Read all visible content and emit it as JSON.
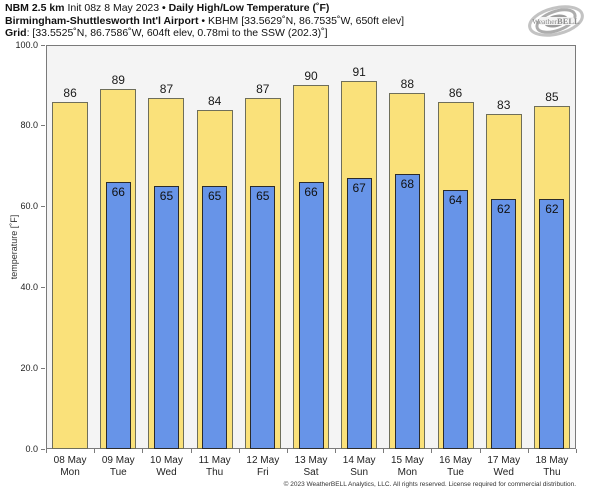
{
  "header": {
    "line1_bold": "NBM 2.5 km",
    "line1_regular": " Init 08z 8 May 2023 ",
    "line1_bold2": "• Daily High/Low Temperature (˚F)",
    "line2_bold": "Birmingham-Shuttlesworth Int'l Airport",
    "line2_regular": " • KBHM [33.5629˚N, 86.7535˚W, 650ft elev]",
    "line3_bold": "Grid",
    "line3_regular": ": [33.5525˚N, 86.7586˚W, 604ft elev, 0.78mi to the SSW (202.3)˚]"
  },
  "logo": {
    "text_weather": "Weather",
    "text_bell": "BELL"
  },
  "chart_data": {
    "type": "bar",
    "title": "NBM 2.5 km Daily High/Low Temperature (°F) — KBHM",
    "ylabel": "temperature [˚F]",
    "xlabel": "",
    "ylim": [
      0,
      100
    ],
    "grid": false,
    "legend": "none",
    "plot_background": "#f4f4f4",
    "yticks": [
      {
        "value": 0,
        "label": "0.0"
      },
      {
        "value": 20,
        "label": "20.0"
      },
      {
        "value": 40,
        "label": "40.0"
      },
      {
        "value": 60,
        "label": "60.0"
      },
      {
        "value": 80,
        "label": "80.0"
      },
      {
        "value": 100,
        "label": "100.0"
      }
    ],
    "categories": [
      {
        "date": "08 May",
        "weekday": "Mon"
      },
      {
        "date": "09 May",
        "weekday": "Tue"
      },
      {
        "date": "10 May",
        "weekday": "Wed"
      },
      {
        "date": "11 May",
        "weekday": "Thu"
      },
      {
        "date": "12 May",
        "weekday": "Fri"
      },
      {
        "date": "13 May",
        "weekday": "Sat"
      },
      {
        "date": "14 May",
        "weekday": "Sun"
      },
      {
        "date": "15 May",
        "weekday": "Mon"
      },
      {
        "date": "16 May",
        "weekday": "Tue"
      },
      {
        "date": "17 May",
        "weekday": "Wed"
      },
      {
        "date": "18 May",
        "weekday": "Thu"
      }
    ],
    "series": [
      {
        "name": "daily-high",
        "color": "#FAE17A",
        "edge_color": "#6e6e5a",
        "values": [
          86,
          89,
          87,
          84,
          87,
          90,
          91,
          88,
          86,
          83,
          85
        ]
      },
      {
        "name": "daily-low",
        "color": "#6794E8",
        "edge_color": "#2b2b2b",
        "values": [
          null,
          66,
          65,
          65,
          65,
          66,
          67,
          68,
          64,
          62,
          62
        ]
      }
    ]
  },
  "footer": {
    "copyright": "© 2023 WeatherBELL Analytics, LLC. All rights reserved. License required for commercial distribution."
  }
}
